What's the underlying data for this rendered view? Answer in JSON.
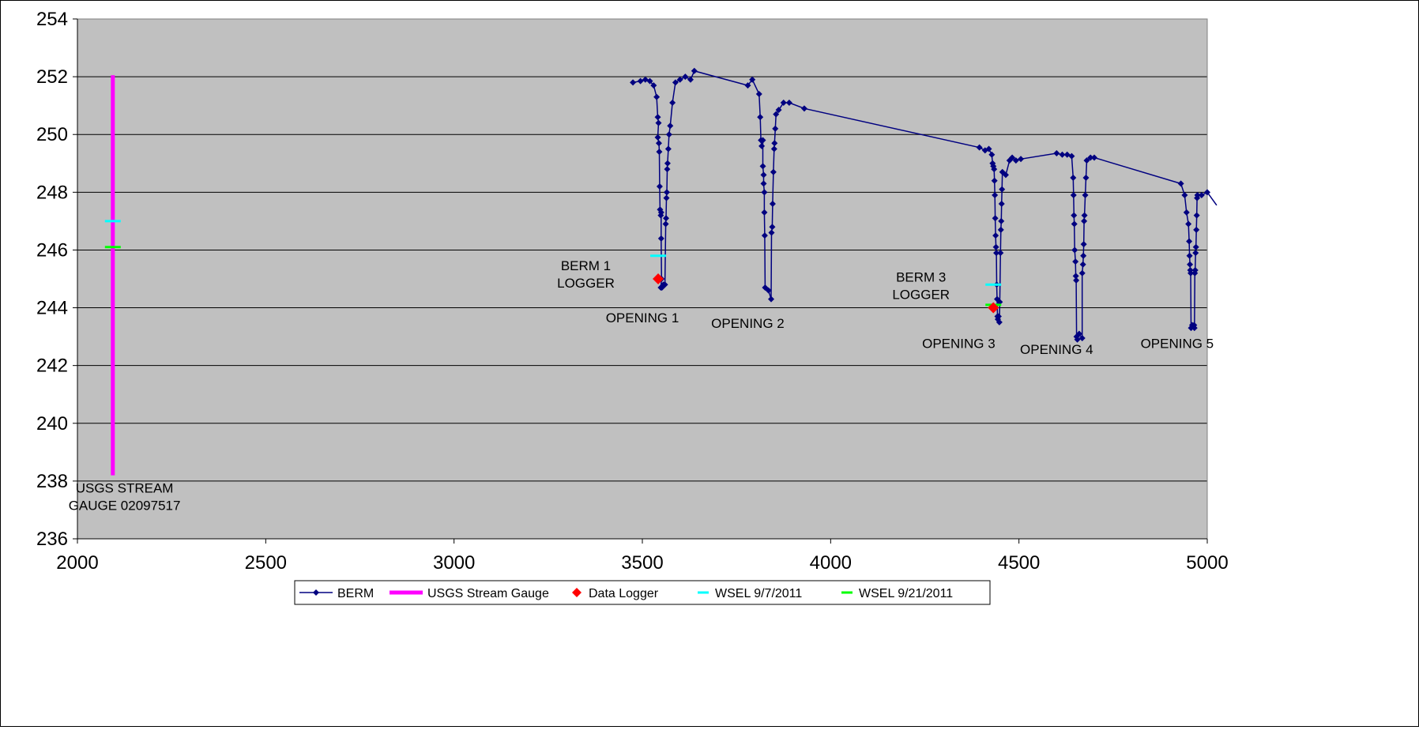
{
  "chart_data": {
    "type": "line",
    "title": "",
    "xlabel": "",
    "ylabel": "",
    "xlim": [
      2000,
      5000
    ],
    "ylim": [
      236,
      254
    ],
    "xticks": [
      2000,
      2500,
      3000,
      3500,
      4000,
      4500,
      5000
    ],
    "yticks": [
      236,
      238,
      240,
      242,
      244,
      246,
      248,
      250,
      252,
      254
    ],
    "grid": "horizontal",
    "legend_position": "bottom",
    "colors": {
      "plot_background": "#c0c0c0",
      "berm": "#000080",
      "usgs_gauge": "#ff00ff",
      "data_logger": "#ff0000",
      "wsel_1": "#00ffff",
      "wsel_2": "#00ff00"
    },
    "series": [
      {
        "name": "BERM",
        "marker": "diamond",
        "points": [
          [
            3475,
            251.8
          ],
          [
            3495,
            251.85
          ],
          [
            3508,
            251.9
          ],
          [
            3520,
            251.85
          ],
          [
            3530,
            251.7
          ],
          [
            3538,
            251.3
          ],
          [
            3541,
            250.6
          ],
          [
            3543,
            250.4
          ],
          [
            3541,
            249.9
          ],
          [
            3544,
            249.7
          ],
          [
            3545,
            249.4
          ],
          [
            3546,
            248.2
          ],
          [
            3547,
            247.4
          ],
          [
            3549,
            247.2
          ],
          [
            3550,
            247.3
          ],
          [
            3550,
            246.4
          ],
          [
            3551,
            245.0
          ],
          [
            3549,
            244.7
          ],
          [
            3552,
            244.7
          ],
          [
            3556,
            244.8
          ],
          [
            3560,
            244.8
          ],
          [
            3562,
            246.9
          ],
          [
            3563,
            247.1
          ],
          [
            3564,
            247.8
          ],
          [
            3565,
            248.0
          ],
          [
            3566,
            248.8
          ],
          [
            3567,
            249.0
          ],
          [
            3569,
            249.5
          ],
          [
            3571,
            250.0
          ],
          [
            3574,
            250.3
          ],
          [
            3580,
            251.1
          ],
          [
            3588,
            251.8
          ],
          [
            3600,
            251.9
          ],
          [
            3614,
            252.0
          ],
          [
            3628,
            251.9
          ],
          [
            3638,
            252.2
          ],
          [
            3780,
            251.7
          ],
          [
            3792,
            251.9
          ],
          [
            3810,
            251.4
          ],
          [
            3813,
            250.6
          ],
          [
            3815,
            249.8
          ],
          [
            3817,
            249.6
          ],
          [
            3820,
            249.8
          ],
          [
            3820,
            248.9
          ],
          [
            3822,
            248.6
          ],
          [
            3822,
            248.3
          ],
          [
            3824,
            248.0
          ],
          [
            3824,
            247.3
          ],
          [
            3825,
            246.5
          ],
          [
            3826,
            244.7
          ],
          [
            3835,
            244.6
          ],
          [
            3842,
            244.3
          ],
          [
            3843,
            246.6
          ],
          [
            3845,
            246.8
          ],
          [
            3846,
            247.6
          ],
          [
            3848,
            248.7
          ],
          [
            3850,
            249.5
          ],
          [
            3851,
            249.7
          ],
          [
            3853,
            250.2
          ],
          [
            3855,
            250.7
          ],
          [
            3862,
            250.85
          ],
          [
            3875,
            251.1
          ],
          [
            3890,
            251.1
          ],
          [
            3930,
            250.9
          ],
          [
            4395,
            249.55
          ],
          [
            4410,
            249.45
          ],
          [
            4420,
            249.5
          ],
          [
            4428,
            249.3
          ],
          [
            4430,
            249.0
          ],
          [
            4432,
            248.9
          ],
          [
            4434,
            248.8
          ],
          [
            4435,
            248.4
          ],
          [
            4436,
            247.9
          ],
          [
            4437,
            247.1
          ],
          [
            4438,
            246.5
          ],
          [
            4439,
            246.1
          ],
          [
            4440,
            245.9
          ],
          [
            4441,
            244.8
          ],
          [
            4442,
            244.3
          ],
          [
            4443,
            243.7
          ],
          [
            4444,
            243.6
          ],
          [
            4446,
            243.7
          ],
          [
            4448,
            243.5
          ],
          [
            4449,
            244.2
          ],
          [
            4451,
            245.9
          ],
          [
            4452,
            246.7
          ],
          [
            4453,
            247.0
          ],
          [
            4454,
            247.6
          ],
          [
            4455,
            248.1
          ],
          [
            4456,
            248.7
          ],
          [
            4465,
            248.6
          ],
          [
            4475,
            249.1
          ],
          [
            4482,
            249.2
          ],
          [
            4492,
            249.1
          ],
          [
            4505,
            249.15
          ],
          [
            4600,
            249.35
          ],
          [
            4615,
            249.3
          ],
          [
            4628,
            249.3
          ],
          [
            4640,
            249.25
          ],
          [
            4644,
            248.5
          ],
          [
            4645,
            247.9
          ],
          [
            4646,
            247.2
          ],
          [
            4647,
            246.9
          ],
          [
            4648,
            246.0
          ],
          [
            4650,
            245.6
          ],
          [
            4651,
            245.1
          ],
          [
            4652,
            244.95
          ],
          [
            4653,
            243.0
          ],
          [
            4655,
            242.9
          ],
          [
            4660,
            243.1
          ],
          [
            4668,
            242.95
          ],
          [
            4668,
            245.2
          ],
          [
            4670,
            245.5
          ],
          [
            4671,
            245.8
          ],
          [
            4672,
            246.2
          ],
          [
            4673,
            247.0
          ],
          [
            4674,
            247.2
          ],
          [
            4676,
            247.9
          ],
          [
            4678,
            248.5
          ],
          [
            4680,
            249.1
          ],
          [
            4690,
            249.2
          ],
          [
            4700,
            249.2
          ],
          [
            4930,
            248.3
          ],
          [
            4940,
            247.9
          ],
          [
            4945,
            247.3
          ],
          [
            4950,
            246.9
          ],
          [
            4952,
            246.3
          ],
          [
            4953,
            245.8
          ],
          [
            4954,
            245.5
          ],
          [
            4955,
            245.3
          ],
          [
            4956,
            245.2
          ],
          [
            4957,
            243.3
          ],
          [
            4960,
            243.4
          ],
          [
            4965,
            243.4
          ],
          [
            4966,
            243.3
          ],
          [
            4967,
            245.2
          ],
          [
            4968,
            245.3
          ],
          [
            4969,
            245.9
          ],
          [
            4970,
            246.1
          ],
          [
            4971,
            246.7
          ],
          [
            4972,
            247.2
          ],
          [
            4973,
            247.8
          ],
          [
            4974,
            247.9
          ],
          [
            4985,
            247.9
          ],
          [
            5000,
            248.0
          ],
          [
            5025,
            247.55
          ]
        ]
      },
      {
        "name": "USGS Stream Gauge",
        "marker": "none",
        "points": [
          [
            2094,
            238.2
          ],
          [
            2094,
            252.05
          ]
        ]
      },
      {
        "name": "Data Logger",
        "marker": "diamond",
        "points": [
          [
            3542,
            245.0
          ],
          [
            4432,
            244.0
          ]
        ]
      },
      {
        "name": "WSEL 9/7/2011",
        "marker": "dash",
        "points": [
          [
            2094,
            247.0
          ],
          [
            3542,
            245.8
          ],
          [
            4432,
            244.8
          ]
        ]
      },
      {
        "name": "WSEL 9/21/2011",
        "marker": "dash",
        "points": [
          [
            2094,
            246.1
          ],
          [
            4432,
            244.1
          ]
        ]
      }
    ],
    "annotations": [
      {
        "lines": [
          "BERM 1",
          "LOGGER"
        ],
        "x": 3350,
        "y": 245.3
      },
      {
        "lines": [
          "OPENING 1"
        ],
        "x": 3500,
        "y": 243.5
      },
      {
        "lines": [
          "OPENING 2"
        ],
        "x": 3780,
        "y": 243.3
      },
      {
        "lines": [
          "BERM 3",
          "LOGGER"
        ],
        "x": 4240,
        "y": 244.9
      },
      {
        "lines": [
          "OPENING 3"
        ],
        "x": 4340,
        "y": 242.6
      },
      {
        "lines": [
          "OPENING 4"
        ],
        "x": 4600,
        "y": 242.4
      },
      {
        "lines": [
          "OPENING 5"
        ],
        "x": 4920,
        "y": 242.6
      },
      {
        "lines": [
          "USGS STREAM",
          "GAUGE 02097517"
        ],
        "x": 2125,
        "y": 237.6
      }
    ]
  }
}
